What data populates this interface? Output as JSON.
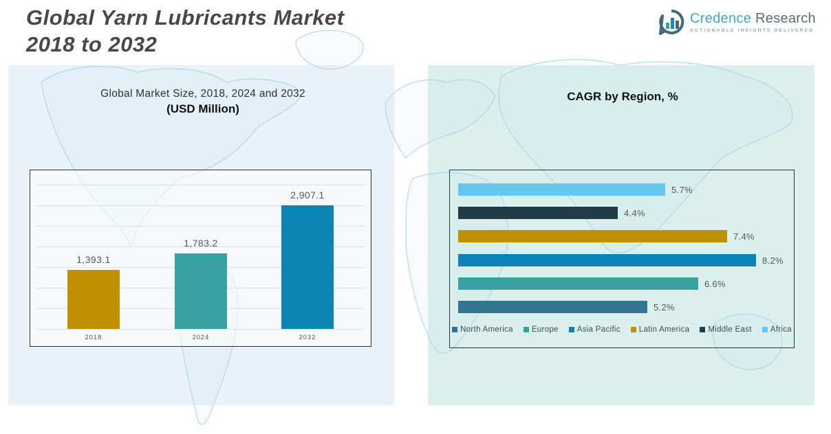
{
  "header": {
    "title_line1": "Global Yarn Lubricants Market",
    "title_line2": "2018 to 2032"
  },
  "logo": {
    "brand_primary": "Credence",
    "brand_secondary": "Research",
    "tagline": "Actionable Insights Delivered",
    "colors": {
      "primary": "#3BA7D9",
      "secondary": "#5B6B73",
      "icon_ring": "#44697D",
      "icon_bar_teal": "#35A1A1",
      "icon_bar_blue": "#1F86C0"
    }
  },
  "panels": {
    "left_bg": "#E9F2F8",
    "right_bg": "#DBF0ED",
    "map_line_color": "#A9D6E8"
  },
  "chart_data": [
    {
      "type": "bar",
      "title": "Global Market Size, 2018, 2024 and 2032",
      "subtitle": "(USD Million)",
      "categories": [
        "2018",
        "2024",
        "2032"
      ],
      "values": [
        1393.1,
        1783.2,
        2907.1
      ],
      "value_labels": [
        "1,393.1",
        "1,783.2",
        "2,907.1"
      ],
      "bar_colors": [
        "#BF8F04",
        "#38A2A2",
        "#0E84B4"
      ],
      "ylim": [
        0,
        3600
      ],
      "grid": "horizontal",
      "legend_position": "none"
    },
    {
      "type": "bar-horizontal",
      "title": "CAGR by Region, %",
      "categories": [
        "Africa",
        "Middle East",
        "Latin America",
        "Asia Pacific",
        "Europe",
        "North America"
      ],
      "values": [
        5.7,
        4.4,
        7.4,
        8.2,
        6.6,
        5.2
      ],
      "value_labels": [
        "5.7%",
        "4.4%",
        "7.4%",
        "8.2%",
        "6.6%",
        "5.2%"
      ],
      "bar_colors": [
        "#64C7F0",
        "#203B49",
        "#BF8F04",
        "#0E84B4",
        "#38A2A2",
        "#31758F"
      ],
      "xlim": [
        0,
        9.2
      ],
      "grid": "off",
      "legend_position": "bottom",
      "legend": [
        {
          "label": "North America",
          "color": "#31758F"
        },
        {
          "label": "Europe",
          "color": "#38A2A2"
        },
        {
          "label": "Asia Pacific",
          "color": "#0E84B4"
        },
        {
          "label": "Latin America",
          "color": "#BF8F04"
        },
        {
          "label": "Middle East",
          "color": "#203B49"
        },
        {
          "label": "Africa",
          "color": "#64C7F0"
        }
      ]
    }
  ]
}
